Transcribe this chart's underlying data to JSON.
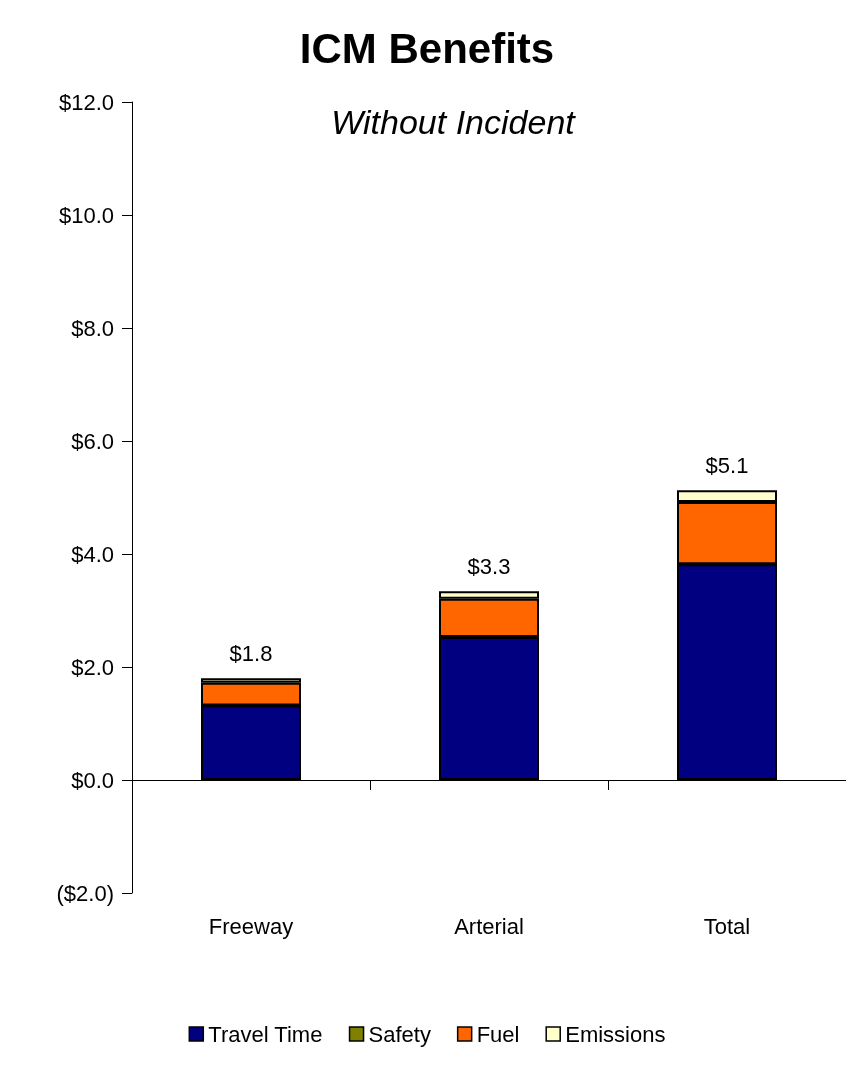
{
  "chart_data": {
    "type": "bar",
    "title": "ICM Benefits",
    "subtitle": "Without Incident",
    "categories": [
      "Freeway",
      "Arterial",
      "Total"
    ],
    "stacked": true,
    "series": [
      {
        "name": "Travel Time",
        "color": "#000080",
        "values": [
          1.32,
          2.53,
          3.82
        ]
      },
      {
        "name": "Safety",
        "color": "#808000",
        "values": [
          0,
          0,
          0
        ]
      },
      {
        "name": "Fuel",
        "color": "#ff6600",
        "values": [
          0.4,
          0.68,
          1.1
        ]
      },
      {
        "name": "Emissions",
        "color": "#ffffcc",
        "values": [
          0.08,
          0.13,
          0.21
        ]
      }
    ],
    "totals": [
      "$1.8",
      "$3.3",
      "$5.1"
    ],
    "ylim": [
      -2,
      12
    ],
    "yticks": [
      {
        "value": -2,
        "label": "($2.0)"
      },
      {
        "value": 0,
        "label": "$0.0"
      },
      {
        "value": 2,
        "label": "$2.0"
      },
      {
        "value": 4,
        "label": "$4.0"
      },
      {
        "value": 6,
        "label": "$6.0"
      },
      {
        "value": 8,
        "label": "$8.0"
      },
      {
        "value": 10,
        "label": "$10.0"
      },
      {
        "value": 12,
        "label": "$12.0"
      }
    ],
    "legend": "bottom"
  }
}
